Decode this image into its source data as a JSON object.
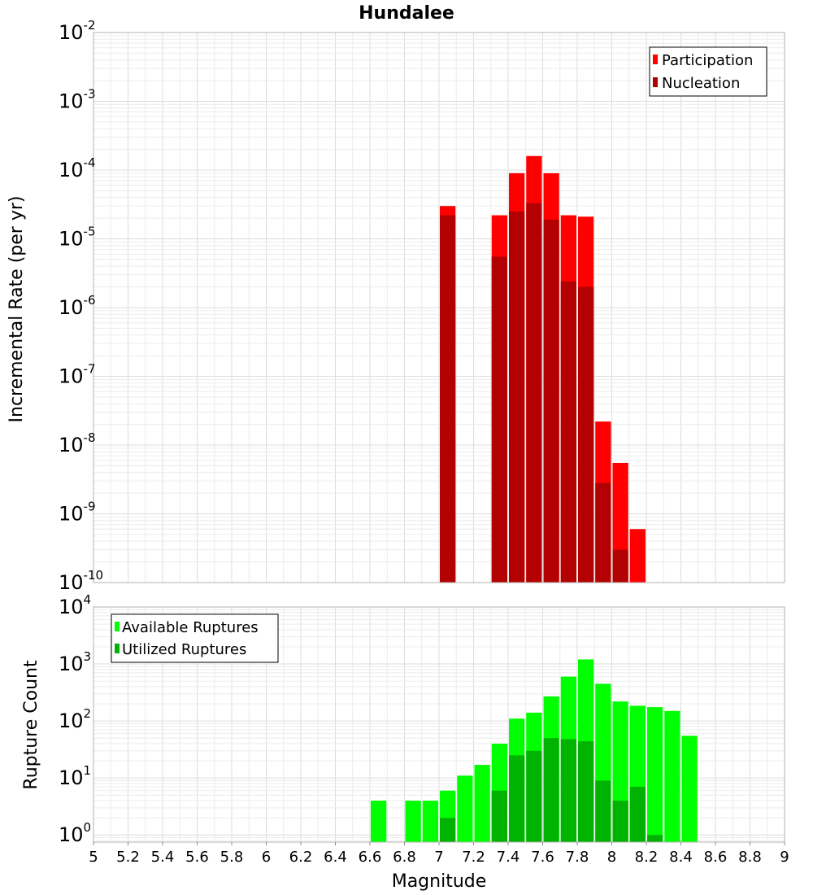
{
  "title": "Hundalee",
  "colors": {
    "participation": "#ff0000",
    "nucleation": "#b30000",
    "available": "#00ff00",
    "utilized": "#00b300",
    "grid": "#e6e6e6"
  },
  "chart_data": [
    {
      "type": "bar",
      "panel": "top",
      "title": "Hundalee",
      "xlabel": "Magnitude",
      "ylabel": "Incremental Rate (per yr)",
      "xlim": [
        5,
        9
      ],
      "yscale": "log",
      "ylim": [
        1e-10,
        0.01
      ],
      "ytick_exponents": [
        "-2",
        "-3",
        "-4",
        "-5",
        "-6",
        "-7",
        "-8",
        "-9",
        "-10"
      ],
      "ytick_base": "10",
      "legend_position": "top-right",
      "series": [
        {
          "name": "Participation",
          "x": [
            7.05,
            7.35,
            7.45,
            7.55,
            7.65,
            7.75,
            7.85,
            7.95,
            8.05,
            8.15
          ],
          "values": [
            3e-05,
            2.2e-05,
            9e-05,
            0.00016,
            9e-05,
            2.2e-05,
            2.1e-05,
            2.2e-08,
            5.5e-09,
            6e-10
          ]
        },
        {
          "name": "Nucleation",
          "x": [
            7.05,
            7.35,
            7.45,
            7.55,
            7.65,
            7.75,
            7.85,
            7.95,
            8.05
          ],
          "values": [
            2.2e-05,
            5.5e-06,
            2.5e-05,
            3.3e-05,
            1.9e-05,
            2.4e-06,
            2e-06,
            2.8e-09,
            3e-10
          ]
        }
      ]
    },
    {
      "type": "bar",
      "panel": "bottom",
      "xlabel": "Magnitude",
      "ylabel": "Rupture Count",
      "xlim": [
        5,
        9
      ],
      "yscale": "log",
      "ylim": [
        0.75,
        10000
      ],
      "ytick_exponents": [
        "4",
        "3",
        "2",
        "1",
        "0"
      ],
      "ytick_base": "10",
      "xtick_labels": [
        "5",
        "5.2",
        "5.4",
        "5.6",
        "5.8",
        "6",
        "6.2",
        "6.4",
        "6.6",
        "6.8",
        "7",
        "7.2",
        "7.4",
        "7.6",
        "7.8",
        "8",
        "8.2",
        "8.4",
        "8.6",
        "8.8",
        "9"
      ],
      "legend_position": "top-left",
      "series": [
        {
          "name": "Available Ruptures",
          "x": [
            6.65,
            6.85,
            6.95,
            7.05,
            7.15,
            7.25,
            7.35,
            7.45,
            7.55,
            7.65,
            7.75,
            7.85,
            7.95,
            8.05,
            8.15,
            8.25,
            8.35,
            8.45
          ],
          "values": [
            4,
            4,
            4,
            6,
            11,
            17,
            40,
            110,
            140,
            270,
            600,
            1200,
            450,
            220,
            185,
            175,
            150,
            55
          ]
        },
        {
          "name": "Utilized Ruptures",
          "x": [
            7.05,
            7.35,
            7.45,
            7.55,
            7.65,
            7.75,
            7.85,
            7.95,
            8.05,
            8.15,
            8.25
          ],
          "values": [
            2,
            6,
            25,
            30,
            50,
            48,
            44,
            9,
            4,
            7,
            1
          ]
        }
      ]
    }
  ]
}
